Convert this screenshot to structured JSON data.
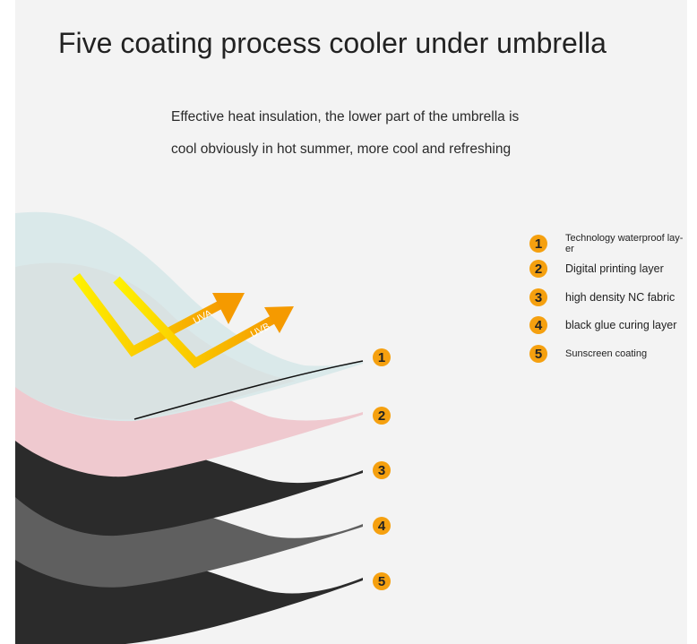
{
  "title": "Five coating process cooler under umbrella",
  "description": {
    "line1": "Effective heat insulation, the lower part of the umbrella is",
    "line2": "cool obviously in hot summer, more cool and refreshing"
  },
  "arrows": [
    {
      "label": "UVA"
    },
    {
      "label": "UVB"
    }
  ],
  "layers": [
    {
      "number": "1",
      "label": "Technology waterproof lay-er",
      "color": "#d9e9ea"
    },
    {
      "number": "2",
      "label": "Digital printing layer",
      "color": "#efc9cf"
    },
    {
      "number": "3",
      "label": "high density NC fabric",
      "color": "#2a2a2a"
    },
    {
      "number": "4",
      "label": "black glue curing layer",
      "color": "#5e5e5e"
    },
    {
      "number": "5",
      "label": "Sunscreen coating",
      "color": "#2a2a2a"
    }
  ],
  "colors": {
    "accent": "#f5a00f",
    "background": "#f3f3f3"
  }
}
